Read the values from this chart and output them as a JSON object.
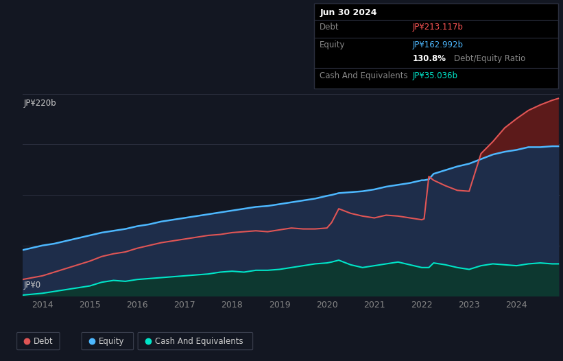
{
  "background_color": "#131722",
  "plot_bg_color": "#131722",
  "title_box": {
    "date": "Jun 30 2024",
    "rows": [
      {
        "label": "Debt",
        "value": "JP¥213.117b",
        "value_color": "#ff5555"
      },
      {
        "label": "Equity",
        "value": "JP¥162.992b",
        "value_color": "#4db8ff"
      },
      {
        "label": "",
        "value": "130.8%",
        "value_color": "#ffffff",
        "suffix": " Debt/Equity Ratio",
        "suffix_color": "#888888"
      },
      {
        "label": "Cash And Equivalents",
        "value": "JP¥35.036b",
        "value_color": "#00e5c8"
      }
    ]
  },
  "ylabel_top": "JP¥220b",
  "ylabel_bottom": "JP¥0",
  "ylim": [
    0,
    220
  ],
  "xlim_start": 2013.58,
  "xlim_end": 2024.92,
  "xticks": [
    2014,
    2015,
    2016,
    2017,
    2018,
    2019,
    2020,
    2021,
    2022,
    2023,
    2024
  ],
  "grid_color": "#2a2e3d",
  "grid_alpha": 1.0,
  "debt_color": "#e05555",
  "equity_color": "#4db8ff",
  "cash_color": "#00e5c8",
  "equity_fill_color": "#1e2d4a",
  "debt_above_equity_fill": "#5c1a1a",
  "cash_fill_color": "#0d3830",
  "legend": [
    {
      "label": "Debt",
      "color": "#e05555"
    },
    {
      "label": "Equity",
      "color": "#4db8ff"
    },
    {
      "label": "Cash And Equivalents",
      "color": "#00e5c8"
    }
  ],
  "years": [
    2013.58,
    2014.0,
    2014.25,
    2014.5,
    2014.75,
    2015.0,
    2015.25,
    2015.5,
    2015.75,
    2016.0,
    2016.25,
    2016.5,
    2016.75,
    2017.0,
    2017.25,
    2017.5,
    2017.75,
    2018.0,
    2018.25,
    2018.5,
    2018.75,
    2019.0,
    2019.25,
    2019.5,
    2019.75,
    2020.0,
    2020.1,
    2020.25,
    2020.5,
    2020.75,
    2021.0,
    2021.25,
    2021.5,
    2021.75,
    2022.0,
    2022.05,
    2022.15,
    2022.25,
    2022.5,
    2022.75,
    2023.0,
    2023.25,
    2023.5,
    2023.75,
    2024.0,
    2024.25,
    2024.5,
    2024.75,
    2024.88
  ],
  "debt": [
    18,
    22,
    26,
    30,
    34,
    38,
    43,
    46,
    48,
    52,
    55,
    58,
    60,
    62,
    64,
    66,
    67,
    69,
    70,
    71,
    70,
    72,
    74,
    73,
    73,
    74,
    80,
    95,
    90,
    87,
    85,
    88,
    87,
    85,
    83,
    84,
    130,
    126,
    120,
    115,
    114,
    155,
    168,
    183,
    193,
    202,
    208,
    213,
    215
  ],
  "equity": [
    50,
    55,
    57,
    60,
    63,
    66,
    69,
    71,
    73,
    76,
    78,
    81,
    83,
    85,
    87,
    89,
    91,
    93,
    95,
    97,
    98,
    100,
    102,
    104,
    106,
    109,
    110,
    112,
    113,
    114,
    116,
    119,
    121,
    123,
    126,
    126,
    127,
    133,
    137,
    141,
    144,
    149,
    154,
    157,
    159,
    162,
    162,
    163,
    163
  ],
  "cash": [
    1,
    3,
    5,
    7,
    9,
    11,
    15,
    17,
    16,
    18,
    19,
    20,
    21,
    22,
    23,
    24,
    26,
    27,
    26,
    28,
    28,
    29,
    31,
    33,
    35,
    36,
    37,
    39,
    34,
    31,
    33,
    35,
    37,
    34,
    31,
    31,
    31,
    36,
    34,
    31,
    29,
    33,
    35,
    34,
    33,
    35,
    36,
    35,
    35
  ]
}
